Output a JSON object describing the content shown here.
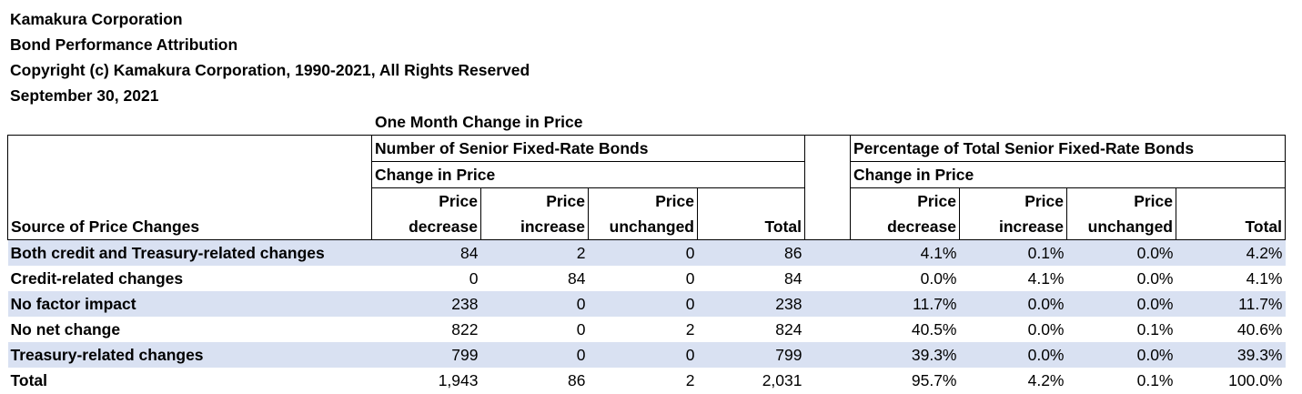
{
  "header": {
    "company": "Kamakura Corporation",
    "report": "Bond Performance Attribution",
    "copyright": "Copyright (c) Kamakura Corporation, 1990-2021, All Rights Reserved",
    "date": "September 30, 2021"
  },
  "table": {
    "subtitle": "One Month Change in Price",
    "group_count": "Number of Senior Fixed-Rate Bonds",
    "group_pct": "Percentage of Total Senior Fixed-Rate Bonds",
    "change_label": "Change in Price",
    "source_header": "Source of Price Changes",
    "col_top": [
      "Price",
      "Price",
      "Price"
    ],
    "col_bottom": [
      "decrease",
      "increase",
      "unchanged",
      "Total"
    ],
    "rows": [
      {
        "source": "Both credit and Treasury-related changes",
        "counts": [
          "84",
          "2",
          "0",
          "86"
        ],
        "pcts": [
          "4.1%",
          "0.1%",
          "0.0%",
          "4.2%"
        ]
      },
      {
        "source": "Credit-related changes",
        "counts": [
          "0",
          "84",
          "0",
          "84"
        ],
        "pcts": [
          "0.0%",
          "4.1%",
          "0.0%",
          "4.1%"
        ]
      },
      {
        "source": "No factor impact",
        "counts": [
          "238",
          "0",
          "0",
          "238"
        ],
        "pcts": [
          "11.7%",
          "0.0%",
          "0.0%",
          "11.7%"
        ]
      },
      {
        "source": "No net change",
        "counts": [
          "822",
          "0",
          "2",
          "824"
        ],
        "pcts": [
          "40.5%",
          "0.0%",
          "0.1%",
          "40.6%"
        ]
      },
      {
        "source": "Treasury-related changes",
        "counts": [
          "799",
          "0",
          "0",
          "799"
        ],
        "pcts": [
          "39.3%",
          "0.0%",
          "0.0%",
          "39.3%"
        ]
      },
      {
        "source": "Total",
        "counts": [
          "1,943",
          "86",
          "2",
          "2,031"
        ],
        "pcts": [
          "95.7%",
          "4.2%",
          "0.1%",
          "100.0%"
        ]
      }
    ]
  },
  "colors": {
    "stripe": "#d9e1f2",
    "border": "#000000"
  }
}
